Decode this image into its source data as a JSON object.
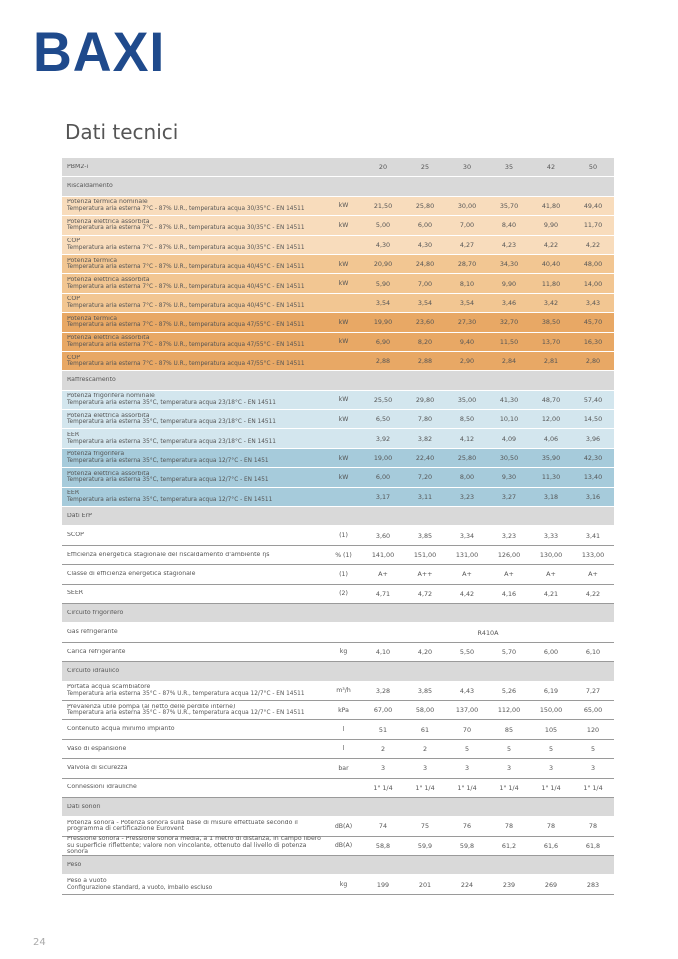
{
  "header": {
    "logo": "BAXI",
    "title": "Dati tecnici"
  },
  "table": {
    "model": "PBM2-i",
    "columns": [
      "20",
      "25",
      "30",
      "35",
      "42",
      "50"
    ],
    "sections": [
      {
        "title": "Riscaldamento",
        "rows": [
          {
            "label": "Potenza termica nominale",
            "note": "Temperatura aria esterna 7°C - 87% U.R., temperatura acqua 30/35°C - EN 14511",
            "unit": "kW",
            "values": [
              "21,50",
              "25,80",
              "30,00",
              "35,70",
              "41,80",
              "49,40"
            ],
            "color": "#f8dcbc"
          },
          {
            "label": "Potenza elettrica assorbita",
            "note": "Temperatura aria esterna 7°C - 87% U.R., temperatura acqua 30/35°C - EN 14511",
            "unit": "kW",
            "values": [
              "5,00",
              "6,00",
              "7,00",
              "8,40",
              "9,90",
              "11,70"
            ],
            "color": "#f8dcbc"
          },
          {
            "label": "COP",
            "note": "Temperatura aria esterna 7°C - 87% U.R., temperatura acqua 30/35°C - EN 14511",
            "values": [
              "4,30",
              "4,30",
              "4,27",
              "4,23",
              "4,22",
              "4,22"
            ],
            "color": "#f8dcbc"
          },
          {
            "label": "Potenza termica",
            "note": "Temperatura aria esterna 7°C - 87% U.R., temperatura acqua 40/45°C - EN 14511",
            "unit": "kW",
            "values": [
              "20,90",
              "24,80",
              "28,70",
              "34,30",
              "40,40",
              "48,00"
            ],
            "color": "#f2c692"
          },
          {
            "label": "Potenza elettrica assorbita",
            "note": "Temperatura aria esterna 7°C - 87% U.R., temperatura acqua 40/45°C - EN 14511",
            "unit": "kW",
            "values": [
              "5,90",
              "7,00",
              "8,10",
              "9,90",
              "11,80",
              "14,00"
            ],
            "color": "#f2c692"
          },
          {
            "label": "COP",
            "note": "Temperatura aria esterna 7°C - 87% U.R., temperatura acqua 40/45°C - EN 14511",
            "values": [
              "3,54",
              "3,54",
              "3,54",
              "3,46",
              "3,42",
              "3,43"
            ],
            "color": "#f2c692"
          },
          {
            "label": "Potenza termica",
            "note": "Temperatura aria esterna 7°C - 87% U.R., temperatura acqua 47/55°C - EN 14511",
            "unit": "kW",
            "values": [
              "19,90",
              "23,60",
              "27,30",
              "32,70",
              "38,50",
              "45,70"
            ],
            "color": "#e8a865"
          },
          {
            "label": "Potenza elettrica assorbita",
            "note": "Temperatura aria esterna 7°C - 87% U.R., temperatura acqua 47/55°C - EN 14511",
            "unit": "kW",
            "values": [
              "6,90",
              "8,20",
              "9,40",
              "11,50",
              "13,70",
              "16,30"
            ],
            "color": "#e8a865"
          },
          {
            "label": "COP",
            "note": "Temperatura aria esterna 7°C - 87% U.R., temperatura acqua 47/55°C - EN 14511",
            "values": [
              "2,88",
              "2,88",
              "2,90",
              "2,84",
              "2,81",
              "2,80"
            ],
            "color": "#e8a865"
          }
        ]
      },
      {
        "title": "Raffrescamento",
        "rows": [
          {
            "label": "Potenza frigorifera nominale",
            "note": "Temperatura aria esterna 35°C, temperatura acqua 23/18°C - EN 14511",
            "unit": "kW",
            "values": [
              "25,50",
              "29,80",
              "35,00",
              "41,30",
              "48,70",
              "57,40"
            ],
            "color": "#d3e6ee"
          },
          {
            "label": "Potenza elettrica assorbita",
            "note": "Temperatura aria esterna 35°C, temperatura acqua 23/18°C - EN 14511",
            "unit": "kW",
            "values": [
              "6,50",
              "7,80",
              "8,50",
              "10,10",
              "12,00",
              "14,50"
            ],
            "color": "#d3e6ee"
          },
          {
            "label": "EER",
            "note": "Temperatura aria esterna 35°C, temperatura acqua 23/18°C - EN 14511",
            "values": [
              "3,92",
              "3,82",
              "4,12",
              "4,09",
              "4,06",
              "3,96"
            ],
            "color": "#d3e6ee"
          },
          {
            "label": "Potenza frigorifera",
            "note": "Temperatura aria esterna 35°C, temperatura acqua 12/7°C - EN 1451",
            "unit": "kW",
            "values": [
              "19,00",
              "22,40",
              "25,80",
              "30,50",
              "35,90",
              "42,30"
            ],
            "color": "#a6cbdb"
          },
          {
            "label": "Potenza elettrica assorbita",
            "note": "Temperatura aria esterna 35°C, temperatura acqua 12/7°C - EN 1451",
            "unit": "kW",
            "values": [
              "6,00",
              "7,20",
              "8,00",
              "9,30",
              "11,30",
              "13,40"
            ],
            "color": "#a6cbdb"
          },
          {
            "label": "EER",
            "note": "Temperatura aria esterna 35°C, temperatura acqua 12/7°C - EN 14511",
            "values": [
              "3,17",
              "3,11",
              "3,23",
              "3,27",
              "3,18",
              "3,16"
            ],
            "color": "#a6cbdb"
          }
        ]
      },
      {
        "title": "Dati ErP",
        "rows": [
          {
            "label": "SCOP",
            "unit": "(1)",
            "values": [
              "3,60",
              "3,85",
              "3,34",
              "3,23",
              "3,33",
              "3,41"
            ]
          },
          {
            "label": "Efficienza energetica stagionale del riscaldamento d'ambiente ηs",
            "unit": "% (1)",
            "values": [
              "141,00",
              "151,00",
              "131,00",
              "126,00",
              "130,00",
              "133,00"
            ]
          },
          {
            "label": "Classe di efficienza energetica stagionale",
            "unit": "(1)",
            "values": [
              "A+",
              "A++",
              "A+",
              "A+",
              "A+",
              "A+"
            ]
          },
          {
            "label": "SEER",
            "unit": "(2)",
            "values": [
              "4,71",
              "4,72",
              "4,42",
              "4,16",
              "4,21",
              "4,22"
            ]
          }
        ]
      },
      {
        "title": "Circuito frigorifero",
        "rows": [
          {
            "label": "Gas refrigerante",
            "values": [
              "R410A"
            ]
          },
          {
            "label": "Carica refrigerante",
            "unit": "kg",
            "values": [
              "4,10",
              "4,20",
              "5,50",
              "5,70",
              "6,00",
              "6,10"
            ]
          }
        ]
      },
      {
        "title": "Circuito idraulico",
        "rows": [
          {
            "label": "Portata acqua scambiatore",
            "note": "Temperatura aria esterna 35°C - 87% U.R., temperatura acqua 12/7°C - EN 14511",
            "unit": "m³/h",
            "values": [
              "3,28",
              "3,85",
              "4,43",
              "5,26",
              "6,19",
              "7,27"
            ]
          },
          {
            "label": "Prevalenza utile pompa (al netto delle perdite interne)",
            "note": "Temperatura aria esterna 35°C - 87% U.R., temperatura acqua 12/7°C - EN 14511",
            "unit": "kPa",
            "values": [
              "67,00",
              "58,00",
              "137,00",
              "112,00",
              "150,00",
              "65,00"
            ]
          },
          {
            "label": "Contenuto acqua minimo impianto",
            "unit": "l",
            "values": [
              "51",
              "61",
              "70",
              "85",
              "105",
              "120"
            ]
          },
          {
            "label": "Vaso di espansione",
            "unit": "l",
            "values": [
              "2",
              "2",
              "5",
              "5",
              "5",
              "5"
            ]
          },
          {
            "label": "Valvola di sicurezza",
            "unit": "bar",
            "values": [
              "3",
              "3",
              "3",
              "3",
              "3",
              "3"
            ]
          },
          {
            "label": "Connessioni idrauliche",
            "values": [
              "1\" 1/4",
              "1\" 1/4",
              "1\" 1/4",
              "1\" 1/4",
              "1\" 1/4",
              "1\" 1/4"
            ]
          }
        ]
      },
      {
        "title": "Dati sonori",
        "rows": [
          {
            "label": "Potenza sonora - Potenza sonora sulla base di misure effettuate secondo il programma di certificazione Eurovent",
            "unit": "dB(A)",
            "values": [
              "74",
              "75",
              "76",
              "78",
              "78",
              "78"
            ]
          },
          {
            "label": "Pressione sonora - Pressione sonora media, a 1 metro di distanza, in campo libero su superficie riflettente; valore non vincolante, ottenuto dal livello di potenza sonora",
            "unit": "dB(A)",
            "values": [
              "58,8",
              "59,9",
              "59,8",
              "61,2",
              "61,6",
              "61,8"
            ]
          }
        ]
      },
      {
        "title": "Peso",
        "rows": [
          {
            "label": "Peso a vuoto",
            "note": "Configurazione standard, a vuoto, imballo escluso",
            "unit": "kg",
            "values": [
              "199",
              "201",
              "224",
              "239",
              "269",
              "283"
            ]
          }
        ]
      }
    ]
  },
  "footer": {
    "page": "24"
  }
}
